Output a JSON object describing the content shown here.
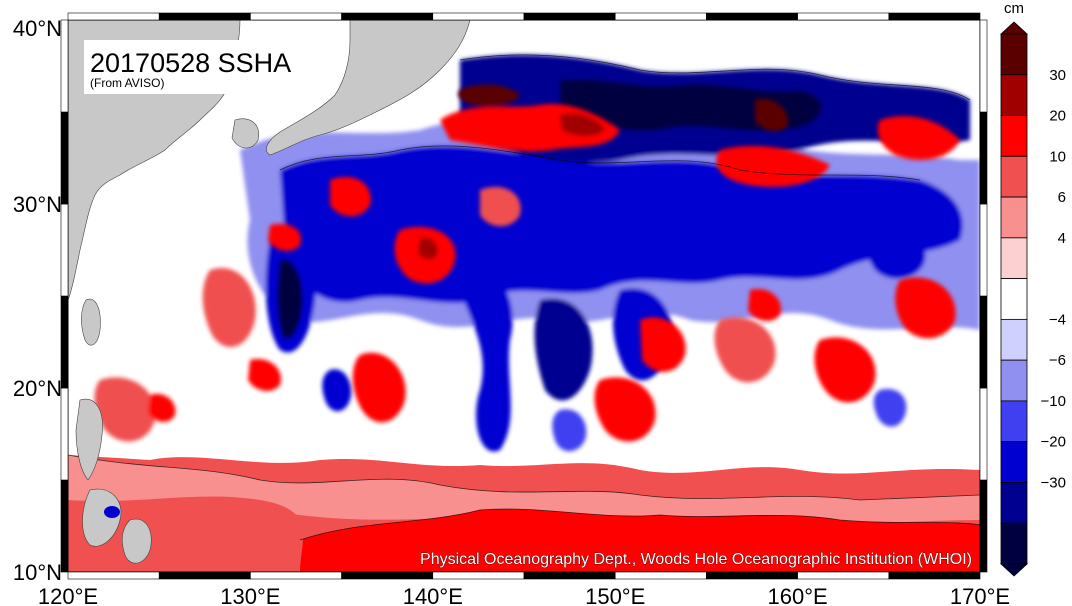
{
  "map": {
    "title": "20170528 SSHA",
    "subtitle": "(From AVISO)",
    "credit": "Physical Oceanography Dept., Woods Hole Oceanographic Institution (WHOI)",
    "unit": "cm",
    "lon_range": [
      120,
      170
    ],
    "lat_range": [
      10,
      40
    ],
    "x_ticks": [
      {
        "lon": 120,
        "label": "120°E"
      },
      {
        "lon": 130,
        "label": "130°E"
      },
      {
        "lon": 140,
        "label": "140°E"
      },
      {
        "lon": 150,
        "label": "150°E"
      },
      {
        "lon": 160,
        "label": "160°E"
      },
      {
        "lon": 170,
        "label": "170°E"
      }
    ],
    "y_ticks": [
      {
        "lat": 40,
        "label": "40°N"
      },
      {
        "lat": 30,
        "label": "30°N"
      },
      {
        "lat": 20,
        "label": "20°N"
      },
      {
        "lat": 10,
        "label": "10°N"
      }
    ],
    "colorbar": {
      "labels": [
        "30",
        "20",
        "10",
        "6",
        "4",
        "−4",
        "−6",
        "−10",
        "−20",
        "−30"
      ],
      "colors": [
        "#5a0000",
        "#a00000",
        "#ff0000",
        "#f05050",
        "#f89090",
        "#fcd0d0",
        "#ffffff",
        "#d0d0ff",
        "#9090f0",
        "#4040f0",
        "#0000d0",
        "#000090",
        "#000040"
      ]
    },
    "colors": {
      "land": "#c8c8c8",
      "background_warm": "#f05050"
    }
  }
}
